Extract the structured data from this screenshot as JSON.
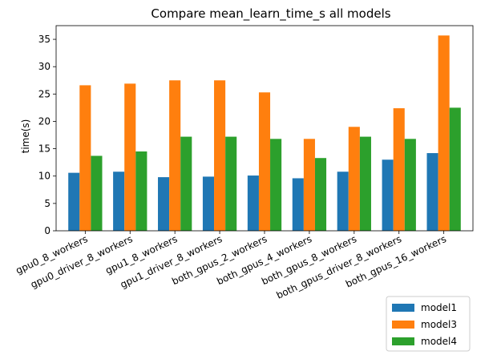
{
  "chart_data": {
    "type": "bar",
    "title": "Compare mean_learn_time_s all models",
    "xlabel": "",
    "ylabel": "time(s)",
    "ylim": [
      0,
      37.5
    ],
    "yticks": [
      0,
      5,
      10,
      15,
      20,
      25,
      30,
      35
    ],
    "grid": false,
    "legend_position": "bottom-right",
    "categories": [
      "gpu0_8_workers",
      "gpu0_driver_8_workers",
      "gpu1_8_workers",
      "gpu1_driver_8_workers",
      "both_gpus_2_workers",
      "both_gpus_4_workers",
      "both_gpus_8_workers",
      "both_gpus_driver_8_workers",
      "both_gpus_16_workers"
    ],
    "series": [
      {
        "name": "model1",
        "color": "#1f77b4",
        "values": [
          10.6,
          10.8,
          9.8,
          9.9,
          10.1,
          9.6,
          10.8,
          13.0,
          14.2
        ]
      },
      {
        "name": "model3",
        "color": "#ff7f0e",
        "values": [
          26.6,
          26.9,
          27.5,
          27.5,
          25.3,
          16.8,
          19.0,
          22.4,
          35.7
        ]
      },
      {
        "name": "model4",
        "color": "#2ca02c",
        "values": [
          13.7,
          14.5,
          17.2,
          17.2,
          16.8,
          13.3,
          17.2,
          16.8,
          22.5
        ]
      }
    ]
  }
}
